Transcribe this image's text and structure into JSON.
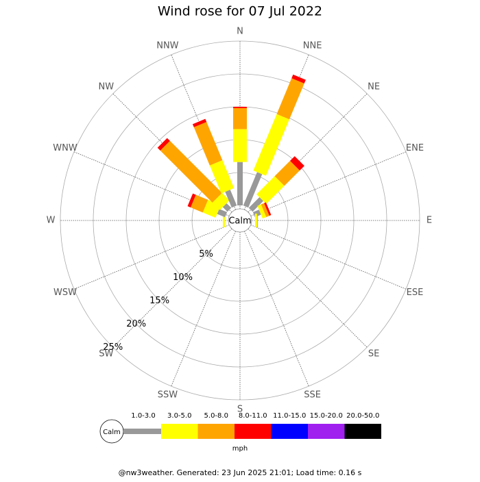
{
  "chart_data": {
    "type": "rose",
    "title": "Wind rose for 07 Jul 2022",
    "directions": [
      "N",
      "NNE",
      "NE",
      "ENE",
      "E",
      "ESE",
      "SE",
      "SSE",
      "S",
      "SSW",
      "SW",
      "WSW",
      "W",
      "WNW",
      "NW",
      "NNW"
    ],
    "calm_label": "Calm",
    "unit": "mph",
    "rlim": [
      0,
      25
    ],
    "rticks": [
      {
        "value": 5,
        "label": "5%"
      },
      {
        "value": 10,
        "label": "10%"
      },
      {
        "value": 15,
        "label": "15%"
      },
      {
        "value": 20,
        "label": "20%"
      },
      {
        "value": 25,
        "label": "25%"
      }
    ],
    "series": [
      {
        "name": "1.0-3.0",
        "color": "#999999",
        "values": [
          6.6,
          5.5,
          2.3,
          1.0,
          0,
          0,
          0,
          0,
          0,
          0,
          0,
          0,
          0,
          1.3,
          1.0,
          2.6
        ]
      },
      {
        "name": "3.0-5.0",
        "color": "#ffff00",
        "values": [
          5.0,
          9.3,
          3.9,
          0.6,
          0.3,
          0,
          0,
          0,
          0,
          0,
          0,
          0,
          0.3,
          2.1,
          1.6,
          4.6
        ]
      },
      {
        "name": "5.0-8.0",
        "color": "#ffa500",
        "values": [
          3.2,
          5.9,
          3.3,
          0.5,
          0.1,
          0,
          0,
          0,
          0,
          0,
          0,
          0,
          0,
          2.0,
          11.2,
          6.3
        ]
      },
      {
        "name": "8.0-11.0",
        "color": "#ff0000",
        "values": [
          0.2,
          0.6,
          1.0,
          0.3,
          0,
          0,
          0,
          0,
          0,
          0,
          0,
          0,
          0,
          0.5,
          0.6,
          0.5
        ]
      },
      {
        "name": "11.0-15.0",
        "color": "#0000ff",
        "values": [
          0,
          0,
          0,
          0,
          0,
          0,
          0,
          0,
          0,
          0,
          0,
          0,
          0,
          0,
          0,
          0
        ]
      },
      {
        "name": "15.0-20.0",
        "color": "#a020f0",
        "values": [
          0,
          0,
          0,
          0,
          0,
          0,
          0,
          0,
          0,
          0,
          0,
          0,
          0,
          0,
          0,
          0
        ]
      },
      {
        "name": "20.0-50.0",
        "color": "#000000",
        "values": [
          0,
          0,
          0,
          0,
          0,
          0,
          0,
          0,
          0,
          0,
          0,
          0,
          0,
          0,
          0,
          0
        ]
      }
    ],
    "footer": "@nw3weather. Generated: 23 Jun 2025 21:01; Load time: 0.16 s"
  }
}
